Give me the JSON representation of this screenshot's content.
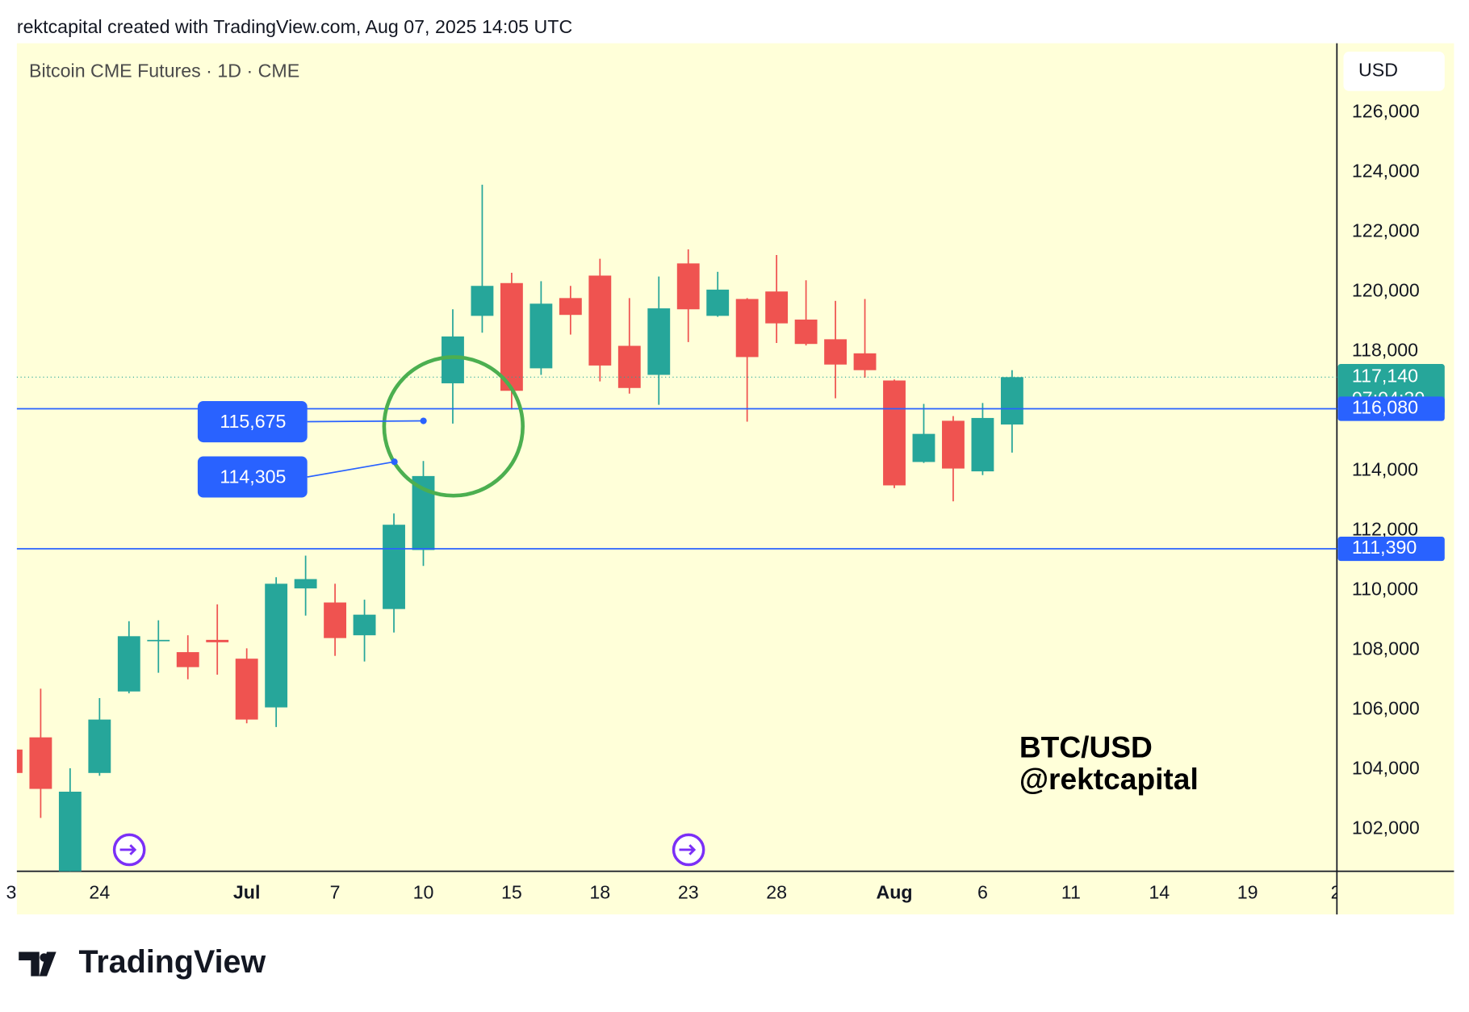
{
  "header": "rektcapital created with TradingView.com, Aug 07, 2025 14:05 UTC",
  "footer": "TradingView",
  "chart_data": {
    "type": "candlestick",
    "title": "Bitcoin CME Futures · 1D · CME",
    "currency": "USD",
    "watermark": [
      "BTC/USD",
      "@rektcapital"
    ],
    "up_color": "#26a69a",
    "down_color": "#ef5350",
    "categories": [
      "3",
      null,
      null,
      "24",
      null,
      null,
      null,
      null,
      "Jul",
      null,
      null,
      "7",
      null,
      null,
      "10",
      null,
      null,
      "15",
      null,
      null,
      "18",
      null,
      null,
      "23",
      null,
      null,
      "28",
      null,
      null,
      null,
      "Aug",
      null,
      null,
      "6",
      null,
      null,
      "11",
      null,
      null,
      "14",
      null,
      null,
      "19",
      null,
      null,
      "2"
    ],
    "open": [
      104667,
      105075,
      100400,
      103882,
      106612,
      108300,
      107929,
      108340,
      107710,
      106078,
      110063,
      109592,
      108494,
      109373,
      111349,
      116933,
      119192,
      120290,
      117435,
      119788,
      120541,
      118188,
      117216,
      120949,
      119192,
      119757,
      120008,
      119067,
      118408,
      117937,
      117027,
      114298,
      115678,
      113984,
      115553,
      null,
      null,
      null,
      null,
      null,
      null,
      null,
      null,
      null,
      null,
      null
    ],
    "high": [
      104800,
      106706,
      104039,
      106392,
      108965,
      108996,
      108494,
      109529,
      108055,
      110439,
      111161,
      110220,
      109686,
      112573,
      114329,
      119412,
      123584,
      120635,
      120353,
      120196,
      121106,
      119788,
      120510,
      121420,
      120667,
      119788,
      121231,
      120384,
      119694,
      119757,
      117060,
      116243,
      115835,
      116274,
      117373,
      null,
      null,
      null,
      null,
      null,
      null,
      null,
      null,
      null,
      null,
      null
    ],
    "low": [
      103700,
      102376,
      100000,
      103788,
      106549,
      107239,
      107020,
      107176,
      105545,
      105420,
      109153,
      107804,
      107616,
      108588,
      110816,
      115584,
      118627,
      116055,
      117216,
      118565,
      116996,
      116588,
      116212,
      118314,
      119161,
      115647,
      118282,
      118200,
      116431,
      117122,
      113420,
      114266,
      112980,
      113859,
      114612,
      null,
      null,
      null,
      null,
      null,
      null,
      null,
      null,
      null,
      null,
      null
    ],
    "close": [
      103882,
      103349,
      103255,
      105671,
      108463,
      108340,
      107427,
      108260,
      105671,
      110220,
      110376,
      108400,
      109184,
      112196,
      113827,
      118502,
      120196,
      116682,
      119600,
      119224,
      117529,
      116776,
      119443,
      119412,
      120071,
      117812,
      118941,
      118251,
      117561,
      117373,
      113514,
      115239,
      114078,
      115772,
      117140,
      null,
      null,
      null,
      null,
      null,
      null,
      null,
      null,
      null,
      null,
      null
    ],
    "ylim": [
      100588,
      128322
    ],
    "yticks": [
      {
        "value": 102000,
        "label": "102,000"
      },
      {
        "value": 104000,
        "label": "104,000"
      },
      {
        "value": 106000,
        "label": "106,000"
      },
      {
        "value": 108000,
        "label": "108,000"
      },
      {
        "value": 110000,
        "label": "110,000"
      },
      {
        "value": 112000,
        "label": "112,000"
      },
      {
        "value": 114000,
        "label": "114,000"
      },
      {
        "value": 116000,
        "label": "116,000"
      },
      {
        "value": 118000,
        "label": "118,000"
      },
      {
        "value": 120000,
        "label": "120,000"
      },
      {
        "value": 122000,
        "label": "122,000"
      },
      {
        "value": 124000,
        "label": "124,000"
      },
      {
        "value": 126000,
        "label": "126,000"
      }
    ],
    "levels": [
      {
        "value": 116080,
        "label": "116,080"
      },
      {
        "value": 111390,
        "label": "111,390"
      }
    ],
    "last_price": {
      "value": 117140,
      "label": "117,140",
      "countdown": "07:04:30"
    },
    "callouts": [
      {
        "value": 115675,
        "label": "115,675"
      },
      {
        "value": 114305,
        "label": "114,305"
      }
    ]
  }
}
